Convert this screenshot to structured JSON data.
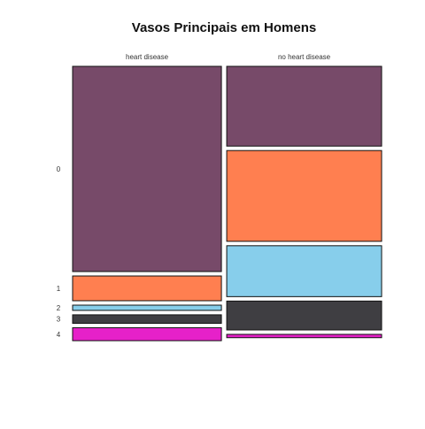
{
  "chart_data": {
    "type": "mosaic",
    "title": "Vasos Principais em Homens",
    "columns": [
      "heart disease",
      "no heart disease"
    ],
    "rows": [
      "0",
      "1",
      "2",
      "3",
      "4"
    ],
    "colors": [
      "#774A69",
      "#FF7F50",
      "#87CEEB",
      "#3F3E42",
      "#E621C9"
    ],
    "column_share": [
      0.49,
      0.51
    ],
    "values": [
      {
        "column": "heart disease",
        "proportions": [
          0.746,
          0.09,
          0.019,
          0.031,
          0.047
        ]
      },
      {
        "column": "no heart disease",
        "proportions": [
          0.29,
          0.33,
          0.185,
          0.105,
          0.012
        ]
      }
    ]
  }
}
